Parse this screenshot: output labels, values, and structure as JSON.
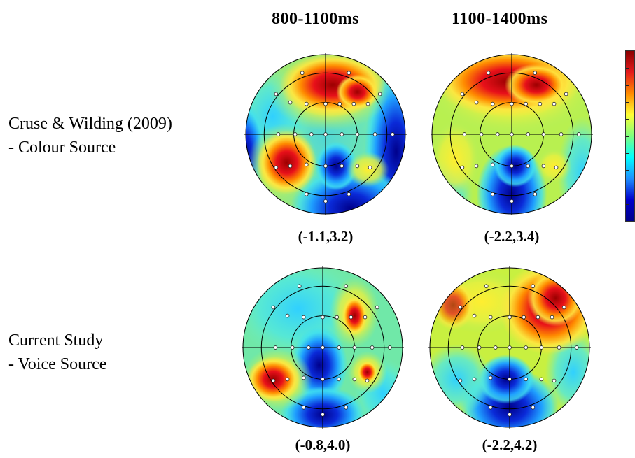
{
  "column_headers": [
    "800-1100ms",
    "1100-1400ms"
  ],
  "rows": [
    {
      "label_line1": "Cruse & Wilding (2009)",
      "label_line2": "- Colour Source",
      "ranges": [
        "(-1.1,3.2)",
        "(-2.2,3.4)"
      ]
    },
    {
      "label_line1": "Current Study",
      "label_line2": "- Voice Source",
      "ranges": [
        "(-0.8,4.0)",
        "(-2.2,4.2)"
      ]
    }
  ],
  "colorbar": {
    "stops": [
      "#8b0000",
      "#e41a1c",
      "#ff8c00",
      "#ffff33",
      "#7fff7f",
      "#00ffff",
      "#1e90ff",
      "#0000cd",
      "#00008b"
    ]
  }
}
